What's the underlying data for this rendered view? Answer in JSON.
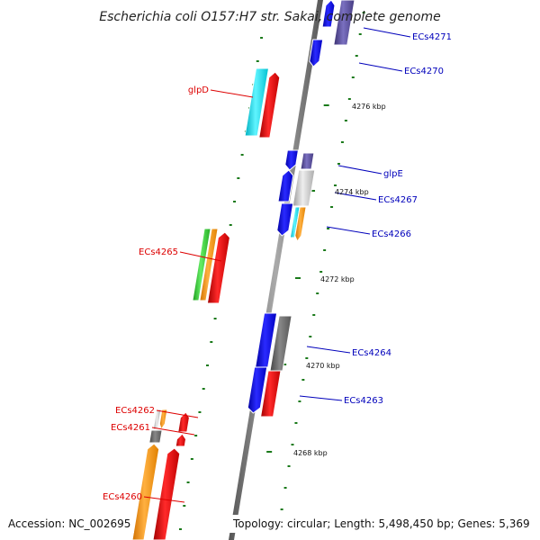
{
  "title": "Escherichia coli O157:H7 str. Sakai, complete genome",
  "accession_text": "Accession: NC_002695",
  "topology_text": "Topology: circular; Length: 5,498,450 bp; Genes: 5,369",
  "kbp_labels": [
    "4276 kbp",
    "4274 kbp",
    "4272 kbp",
    "4270 kbp",
    "4268 kbp"
  ],
  "genes_left": [
    "glpD",
    "ECs4265",
    "ECs4262",
    "ECs4261",
    "ECs4260"
  ],
  "genes_right": [
    "ECs4271",
    "ECs4270",
    "glpE",
    "ECs4267",
    "ECs4266",
    "ECs4264",
    "ECs4263"
  ],
  "colors": {
    "left_label": "#dd0000",
    "right_label": "#0000bb",
    "backbone": "#888888",
    "tick": "#1a7a1a",
    "blue": "#1010f0",
    "red": "#f01010",
    "cyan": "#10e0f0",
    "orange": "#ff9900",
    "green": "#33cc33",
    "purple": "#5a4f9e",
    "gray": "#666666",
    "light_gray": "#c8c8c8"
  }
}
